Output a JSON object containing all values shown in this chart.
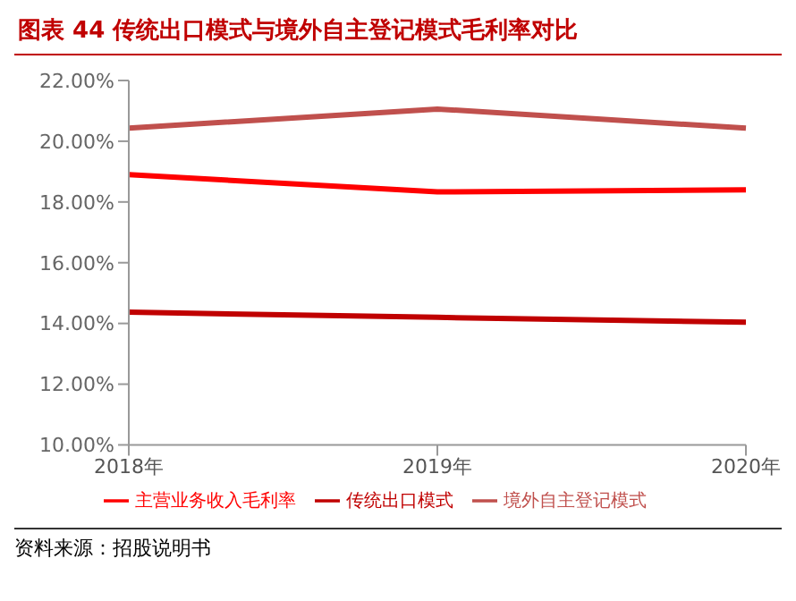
{
  "chart_data": {
    "type": "line",
    "title": "图表 44 传统出口模式与境外自主登记模式毛利率对比",
    "categories": [
      "2018年",
      "2019年",
      "2020年"
    ],
    "series": [
      {
        "name": "传统出口模式",
        "color": "#c00000",
        "values": [
          14.37,
          14.2,
          14.04
        ]
      },
      {
        "name": "境外自主登记模式",
        "color": "#c0504d",
        "values": [
          20.43,
          21.06,
          20.43
        ]
      },
      {
        "name": "主营业务收入毛利率",
        "color": "#ff0000",
        "values": [
          18.9,
          18.33,
          18.4
        ]
      }
    ],
    "ylim": [
      10,
      22
    ],
    "yticks": [
      {
        "value": 10,
        "label": "10.00%"
      },
      {
        "value": 12,
        "label": "12.00%"
      },
      {
        "value": 14,
        "label": "14.00%"
      },
      {
        "value": 16,
        "label": "16.00%"
      },
      {
        "value": 18,
        "label": "18.00%"
      },
      {
        "value": 20,
        "label": "20.00%"
      },
      {
        "value": 22,
        "label": "22.00%"
      }
    ],
    "grid": false,
    "legend": "bottom",
    "marker": "none",
    "line_style": "solid",
    "annotations": [
      "资料来源：招股说明书"
    ]
  }
}
